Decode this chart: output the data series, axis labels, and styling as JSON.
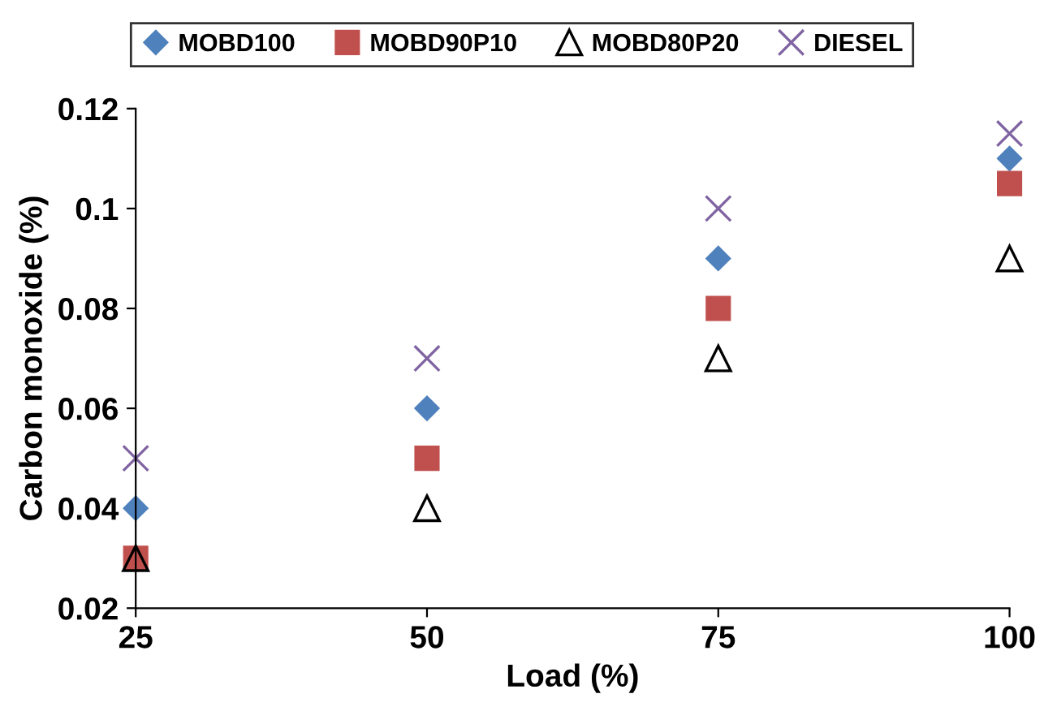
{
  "chart_data": {
    "type": "scatter",
    "xlabel": "Load (%)",
    "ylabel": "Carbon monoxide (%)",
    "x": [
      25,
      50,
      75,
      100
    ],
    "series": [
      {
        "name": "MOBD100",
        "color": "#4f81bd",
        "marker": "diamond",
        "values": [
          0.04,
          0.06,
          0.09,
          0.11
        ]
      },
      {
        "name": "MOBD90P10",
        "color": "#c0504d",
        "marker": "square",
        "values": [
          0.03,
          0.05,
          0.08,
          0.105
        ]
      },
      {
        "name": "MOBD80P20",
        "color": "#000000",
        "marker": "triangle",
        "values": [
          0.03,
          0.04,
          0.07,
          0.09
        ]
      },
      {
        "name": "DIESEL",
        "color": "#8064a2",
        "marker": "cross",
        "values": [
          0.05,
          0.07,
          0.1,
          0.115
        ]
      }
    ],
    "xlim": [
      25,
      100
    ],
    "xticks": [
      25,
      50,
      75,
      100
    ],
    "ylim": [
      0.02,
      0.12
    ],
    "yticks": [
      0.02,
      0.04,
      0.06,
      0.08,
      0.1,
      0.12
    ],
    "grid": false,
    "legend": "top"
  }
}
